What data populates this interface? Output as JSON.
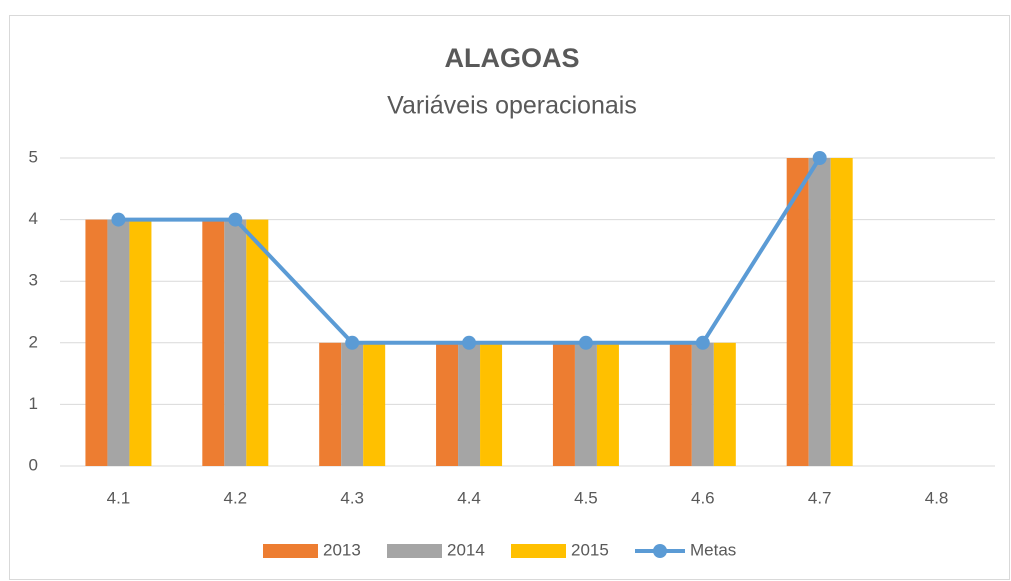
{
  "chart_data": {
    "type": "bar_line",
    "title": "ALAGOAS",
    "subtitle": "Variáveis operacionais",
    "categories": [
      "4.1",
      "4.2",
      "4.3",
      "4.4",
      "4.5",
      "4.6",
      "4.7",
      "4.8"
    ],
    "series": [
      {
        "name": "2013",
        "type": "bar",
        "color": "#ed7d31",
        "values": [
          4,
          4,
          2,
          2,
          2,
          2,
          5,
          null
        ]
      },
      {
        "name": "2014",
        "type": "bar",
        "color": "#a5a5a5",
        "values": [
          4,
          4,
          2,
          2,
          2,
          2,
          5,
          null
        ]
      },
      {
        "name": "2015",
        "type": "bar",
        "color": "#ffc000",
        "values": [
          4,
          4,
          2,
          2,
          2,
          2,
          5,
          null
        ]
      },
      {
        "name": "Metas",
        "type": "line",
        "color": "#5b9bd5",
        "values": [
          4,
          4,
          2,
          2,
          2,
          2,
          5,
          null
        ]
      }
    ],
    "ylim": [
      0,
      5
    ],
    "yticks": [
      0,
      1,
      2,
      3,
      4,
      5
    ],
    "grid": true,
    "legend": "bottom"
  }
}
